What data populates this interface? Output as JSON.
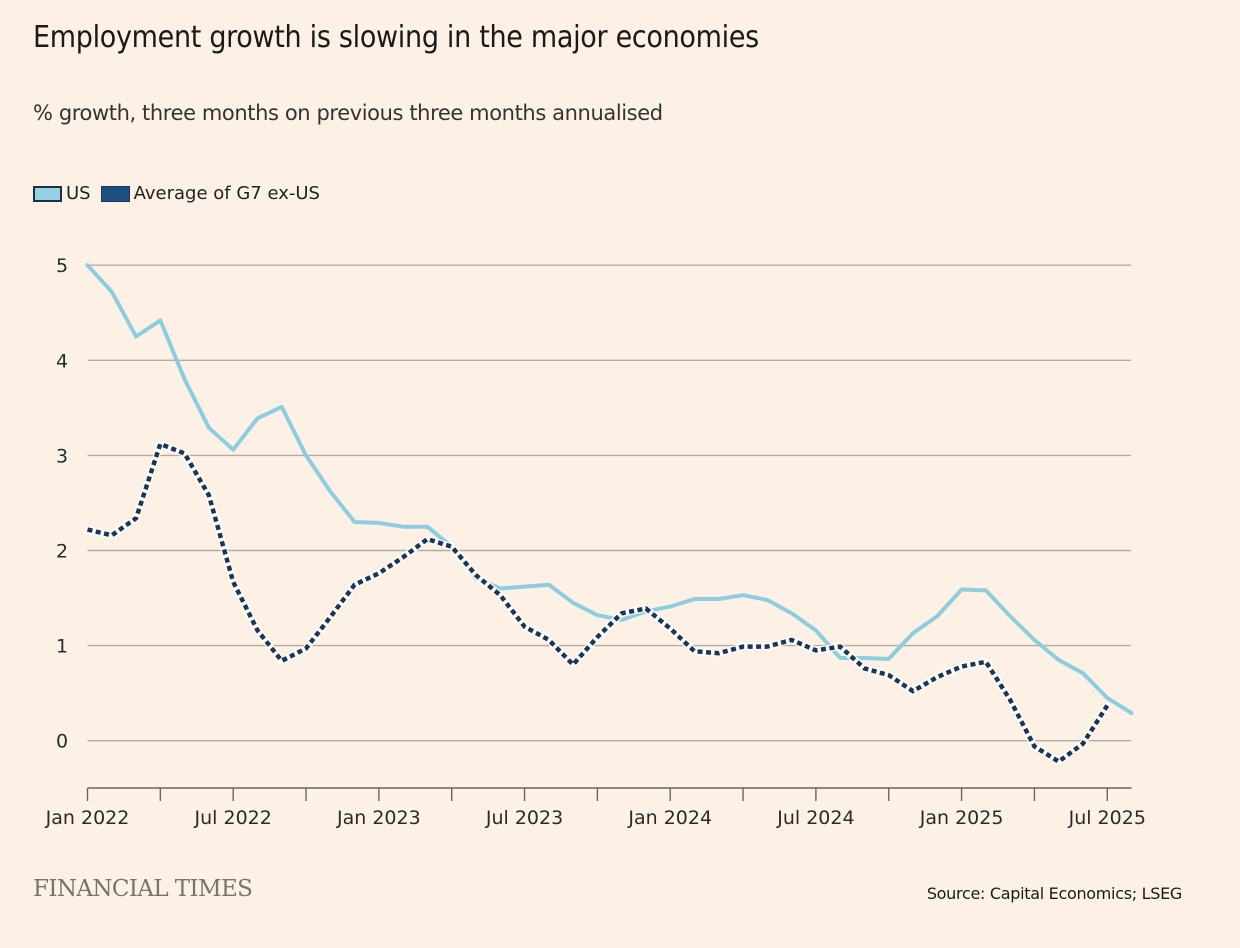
{
  "header": {
    "title": "Employment growth is slowing in the major economies",
    "subtitle": "% growth, three months on previous three months annualised"
  },
  "footer": {
    "brand": "FINANCIAL TIMES",
    "source": "Source: Capital Economics; LSEG"
  },
  "colors": {
    "background": "#fdf1e6",
    "us": "#8ecde0",
    "g7": "#1b3556",
    "grid": "#b5aba1",
    "axis": "#6b6560"
  },
  "chart_data": {
    "type": "line",
    "title": "Employment growth is slowing in the major economies",
    "subtitle": "% growth, three months on previous three months annualised",
    "xlabel": "",
    "ylabel": "",
    "ylim": [
      -0.5,
      5
    ],
    "yticks": [
      0,
      1,
      2,
      3,
      4,
      5
    ],
    "grid": true,
    "legend_position": "top-left",
    "x_start": "Jan 2022",
    "x_frequency": "monthly",
    "x_tick_every_months": 3,
    "xtick_labels": [
      {
        "month_index": 0,
        "label": "Jan 2022"
      },
      {
        "month_index": 6,
        "label": "Jul 2022"
      },
      {
        "month_index": 12,
        "label": "Jan 2023"
      },
      {
        "month_index": 18,
        "label": "Jul 2023"
      },
      {
        "month_index": 24,
        "label": "Jan 2024"
      },
      {
        "month_index": 30,
        "label": "Jul 2024"
      },
      {
        "month_index": 36,
        "label": "Jan 2025"
      },
      {
        "month_index": 42,
        "label": "Jul 2025"
      }
    ],
    "x_axis_end_month_index": 43,
    "series": [
      {
        "name": "US",
        "style": "solid",
        "values": [
          5.0,
          4.72,
          4.25,
          4.42,
          3.8,
          3.29,
          3.06,
          3.39,
          3.51,
          3.0,
          2.62,
          2.3,
          2.29,
          2.25,
          2.25,
          2.04,
          1.71,
          1.6,
          1.62,
          1.64,
          1.45,
          1.32,
          1.27,
          1.36,
          1.41,
          1.49,
          1.49,
          1.53,
          1.48,
          1.34,
          1.16,
          0.87,
          0.87,
          0.86,
          1.13,
          1.31,
          1.59,
          1.58,
          1.31,
          1.06,
          0.85,
          0.71,
          0.45,
          0.29
        ]
      },
      {
        "name": "Average of G7 ex-US",
        "style": "dotted",
        "values": [
          2.22,
          2.16,
          2.34,
          3.12,
          3.02,
          2.58,
          1.67,
          1.16,
          0.84,
          0.97,
          1.3,
          1.64,
          1.76,
          1.93,
          2.12,
          2.04,
          1.74,
          1.53,
          1.2,
          1.06,
          0.8,
          1.09,
          1.34,
          1.39,
          1.18,
          0.94,
          0.92,
          0.99,
          0.99,
          1.06,
          0.95,
          0.99,
          0.76,
          0.69,
          0.52,
          0.67,
          0.78,
          0.83,
          0.43,
          -0.06,
          -0.22,
          -0.03,
          0.37
        ]
      }
    ]
  }
}
